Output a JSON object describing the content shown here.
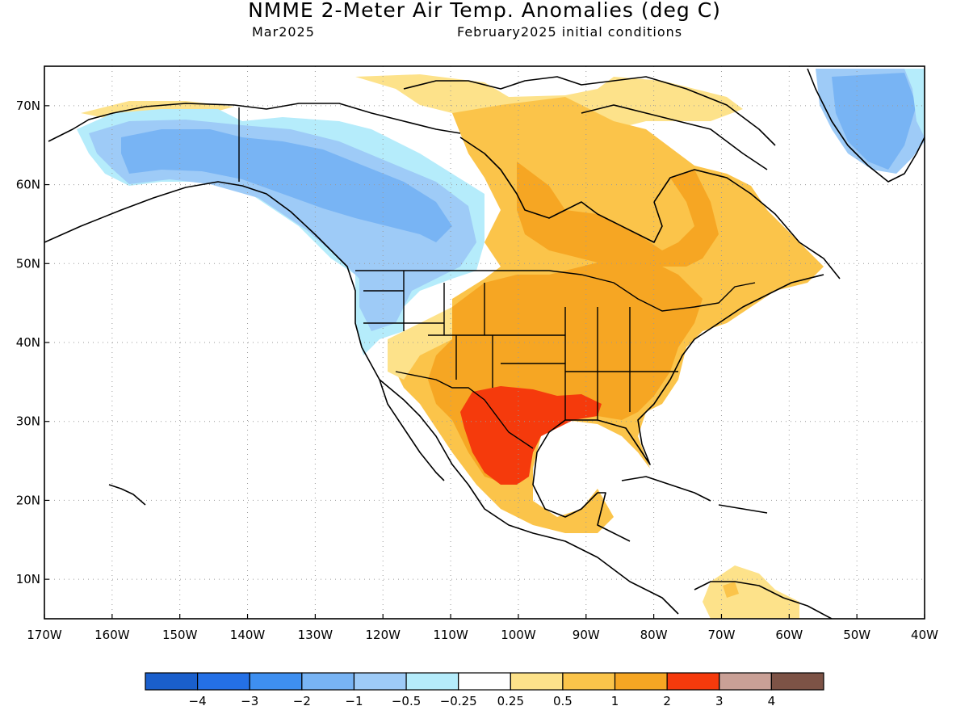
{
  "header": {
    "title": "NMME 2-Meter Air Temp. Anomalies (deg C)",
    "valid_month": "Mar2025",
    "initial_conditions": "February2025 initial conditions"
  },
  "map": {
    "lat_labels": [
      "70N",
      "60N",
      "50N",
      "40N",
      "30N",
      "20N",
      "10N"
    ],
    "lon_labels": [
      "170W",
      "160W",
      "150W",
      "140W",
      "130W",
      "120W",
      "110W",
      "100W",
      "90W",
      "80W",
      "70W",
      "60W",
      "50W",
      "40W"
    ],
    "lat_values": [
      70,
      60,
      50,
      40,
      30,
      20,
      10
    ],
    "lon_values": [
      -170,
      -160,
      -150,
      -140,
      -130,
      -120,
      -110,
      -100,
      -90,
      -80,
      -70,
      -60,
      -50,
      -40
    ],
    "lon_range": [
      -170,
      -40
    ],
    "lat_range": [
      5,
      75
    ],
    "grid": "dotted"
  },
  "colorbar": {
    "colors": [
      "#1a5fcc",
      "#2470e6",
      "#3e8ff0",
      "#78b4f4",
      "#9ecbf7",
      "#b5ecfb",
      "#ffffff",
      "#fde28a",
      "#fbc44a",
      "#f6a623",
      "#f53a0c",
      "#c9a096",
      "#7d5346"
    ],
    "labels": [
      "−4",
      "−3",
      "−2",
      "−1",
      "−0.5",
      "−0.25",
      "0.25",
      "0.5",
      "1",
      "2",
      "3",
      "4"
    ]
  }
}
